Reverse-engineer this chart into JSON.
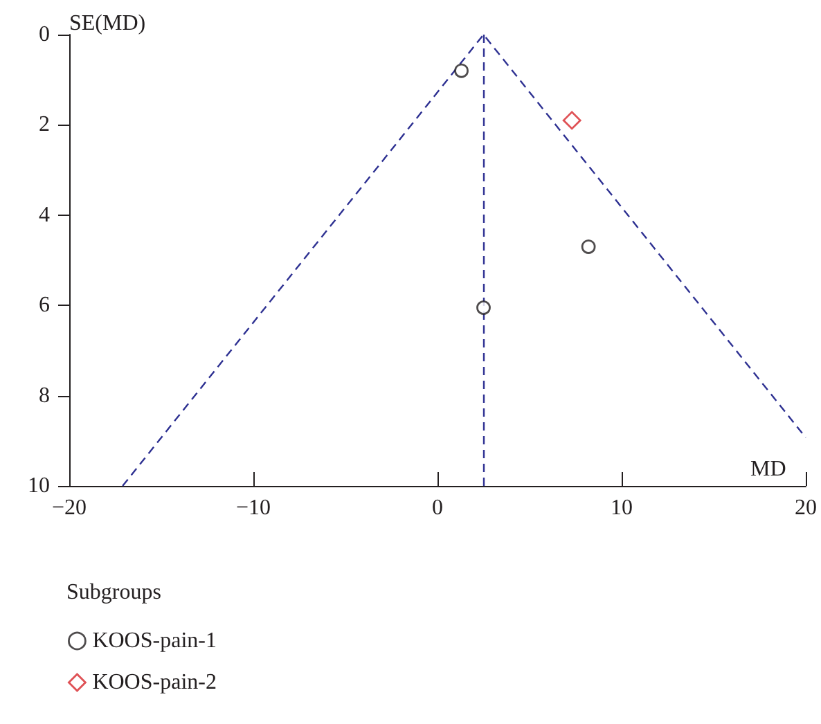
{
  "chart_data": {
    "type": "scatter",
    "xlabel": "MD",
    "ylabel": "SE(MD)",
    "legend_title": "Subgroups",
    "legend": "bottom left",
    "xlim": [
      -20,
      20
    ],
    "xticks": [
      -20,
      -10,
      0,
      10,
      20
    ],
    "ylim": [
      10,
      0
    ],
    "yticks": [
      0,
      2,
      4,
      6,
      8,
      10
    ],
    "series": [
      {
        "name": "KOOS-pain-1",
        "color": "#231f20",
        "marker": "circle",
        "x": [
          1.3,
          8.2,
          2.5
        ],
        "values": [
          0.8,
          4.7,
          6.05
        ]
      },
      {
        "name": "KOOS-pain-2",
        "color": "#d7262b",
        "marker": "diamond",
        "x": [
          7.3
        ],
        "values": [
          1.9
        ]
      },
      {
        "type": "line",
        "color": "#2e3192",
        "marker": "none",
        "line_style": "dashed",
        "x": [
          -17.1,
          2.5,
          20
        ],
        "values": [
          10,
          0,
          8.93
        ]
      }
    ],
    "ref_lines": [
      {
        "axis": "x",
        "value": 2.5,
        "color": "#2e3192",
        "line_style": "dashed"
      }
    ]
  }
}
